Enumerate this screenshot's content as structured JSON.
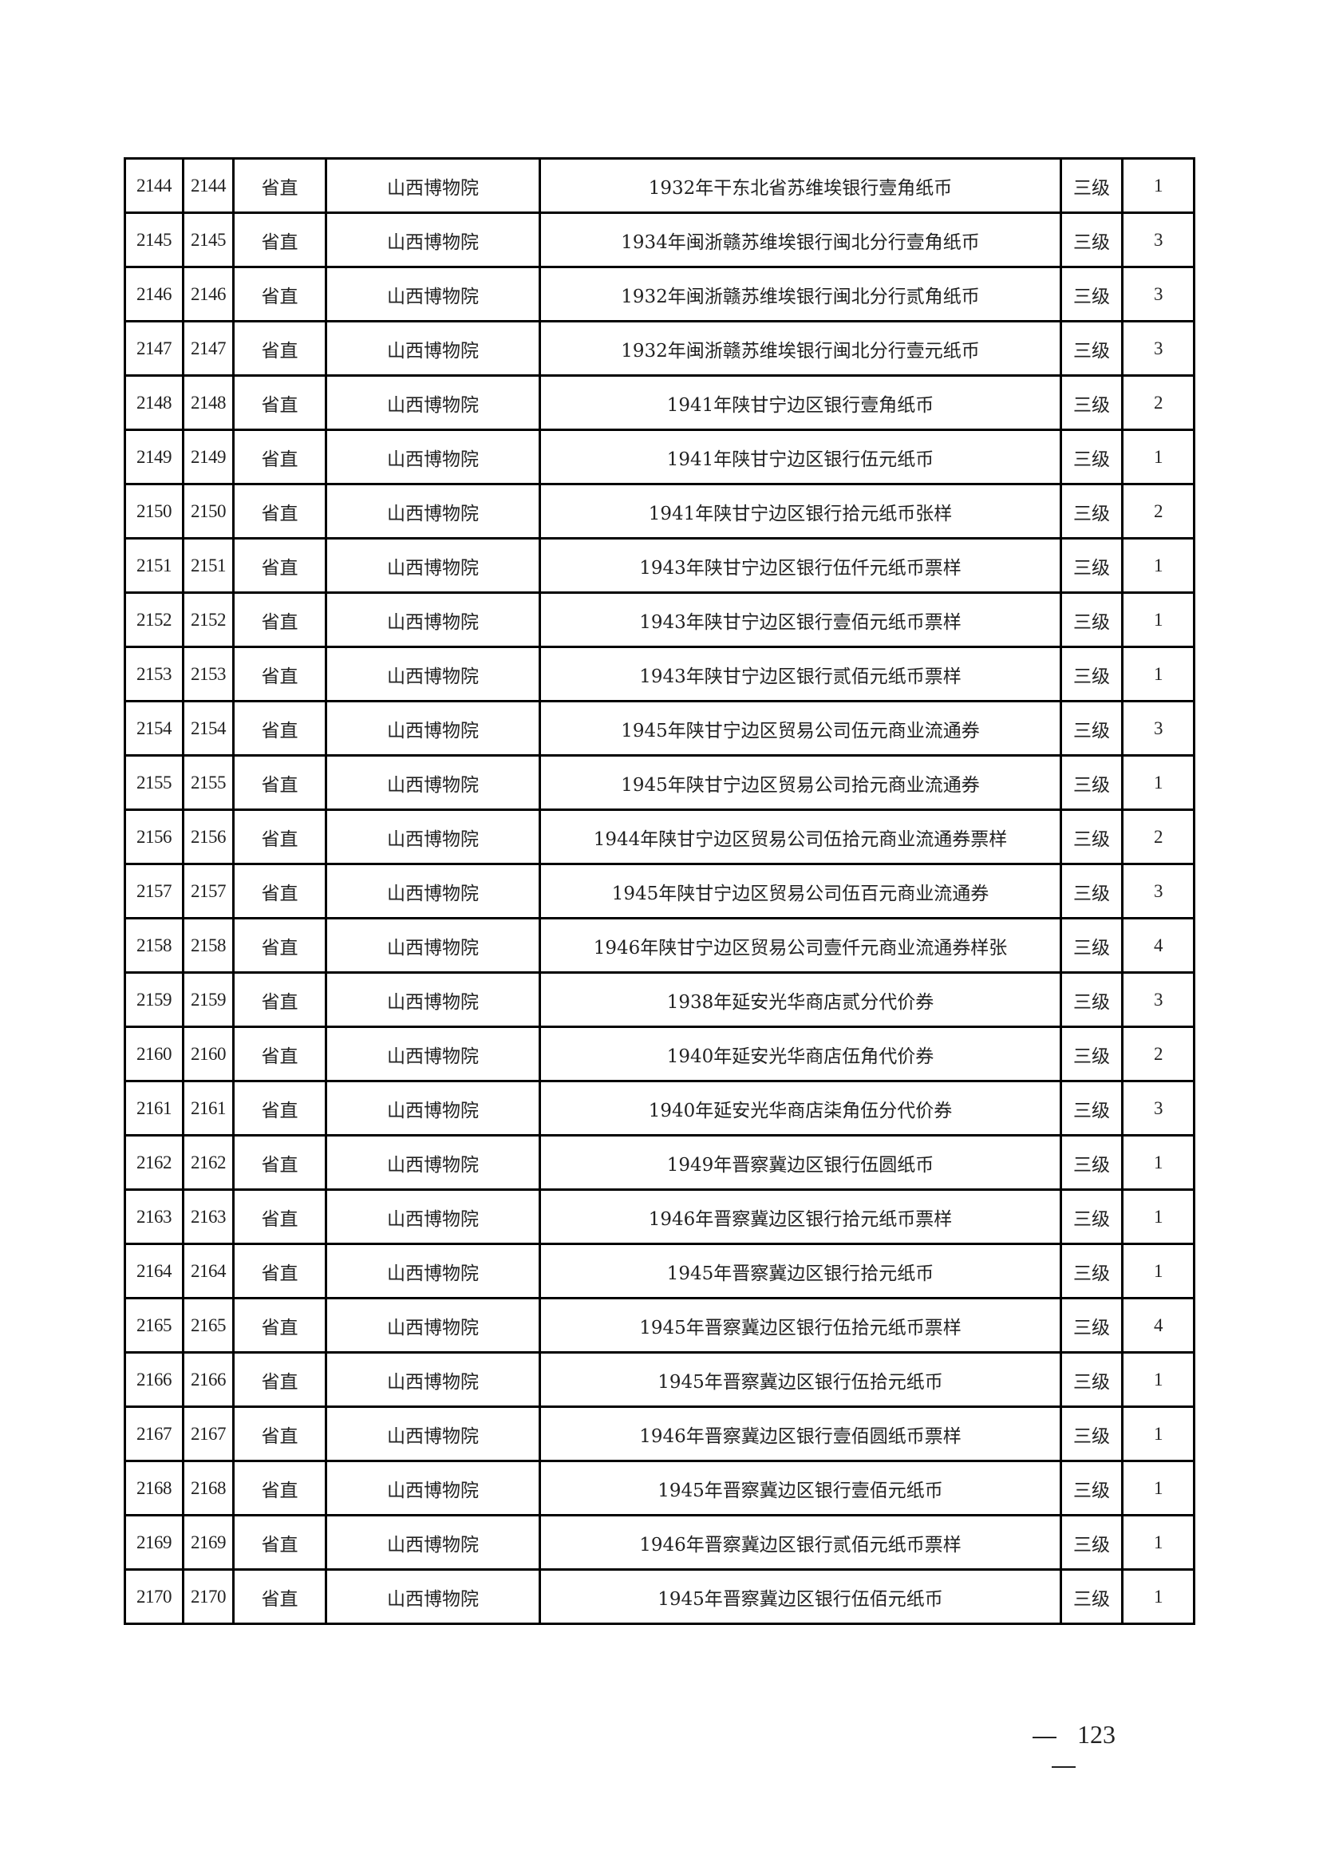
{
  "table": {
    "rows": [
      [
        "2144",
        "2144",
        "省直",
        "山西博物院",
        "1932年干东北省苏维埃银行壹角纸币",
        "三级",
        "1"
      ],
      [
        "2145",
        "2145",
        "省直",
        "山西博物院",
        "1934年闽浙赣苏维埃银行闽北分行壹角纸币",
        "三级",
        "3"
      ],
      [
        "2146",
        "2146",
        "省直",
        "山西博物院",
        "1932年闽浙赣苏维埃银行闽北分行贰角纸币",
        "三级",
        "3"
      ],
      [
        "2147",
        "2147",
        "省直",
        "山西博物院",
        "1932年闽浙赣苏维埃银行闽北分行壹元纸币",
        "三级",
        "3"
      ],
      [
        "2148",
        "2148",
        "省直",
        "山西博物院",
        "1941年陕甘宁边区银行壹角纸币",
        "三级",
        "2"
      ],
      [
        "2149",
        "2149",
        "省直",
        "山西博物院",
        "1941年陕甘宁边区银行伍元纸币",
        "三级",
        "1"
      ],
      [
        "2150",
        "2150",
        "省直",
        "山西博物院",
        "1941年陕甘宁边区银行拾元纸币张样",
        "三级",
        "2"
      ],
      [
        "2151",
        "2151",
        "省直",
        "山西博物院",
        "1943年陕甘宁边区银行伍仟元纸币票样",
        "三级",
        "1"
      ],
      [
        "2152",
        "2152",
        "省直",
        "山西博物院",
        "1943年陕甘宁边区银行壹佰元纸币票样",
        "三级",
        "1"
      ],
      [
        "2153",
        "2153",
        "省直",
        "山西博物院",
        "1943年陕甘宁边区银行贰佰元纸币票样",
        "三级",
        "1"
      ],
      [
        "2154",
        "2154",
        "省直",
        "山西博物院",
        "1945年陕甘宁边区贸易公司伍元商业流通券",
        "三级",
        "3"
      ],
      [
        "2155",
        "2155",
        "省直",
        "山西博物院",
        "1945年陕甘宁边区贸易公司拾元商业流通券",
        "三级",
        "1"
      ],
      [
        "2156",
        "2156",
        "省直",
        "山西博物院",
        "1944年陕甘宁边区贸易公司伍拾元商业流通券票样",
        "三级",
        "2"
      ],
      [
        "2157",
        "2157",
        "省直",
        "山西博物院",
        "1945年陕甘宁边区贸易公司伍百元商业流通券",
        "三级",
        "3"
      ],
      [
        "2158",
        "2158",
        "省直",
        "山西博物院",
        "1946年陕甘宁边区贸易公司壹仟元商业流通券样张",
        "三级",
        "4"
      ],
      [
        "2159",
        "2159",
        "省直",
        "山西博物院",
        "1938年延安光华商店贰分代价券",
        "三级",
        "3"
      ],
      [
        "2160",
        "2160",
        "省直",
        "山西博物院",
        "1940年延安光华商店伍角代价券",
        "三级",
        "2"
      ],
      [
        "2161",
        "2161",
        "省直",
        "山西博物院",
        "1940年延安光华商店柒角伍分代价券",
        "三级",
        "3"
      ],
      [
        "2162",
        "2162",
        "省直",
        "山西博物院",
        "1949年晋察冀边区银行伍圆纸币",
        "三级",
        "1"
      ],
      [
        "2163",
        "2163",
        "省直",
        "山西博物院",
        "1946年晋察冀边区银行拾元纸币票样",
        "三级",
        "1"
      ],
      [
        "2164",
        "2164",
        "省直",
        "山西博物院",
        "1945年晋察冀边区银行拾元纸币",
        "三级",
        "1"
      ],
      [
        "2165",
        "2165",
        "省直",
        "山西博物院",
        "1945年晋察冀边区银行伍拾元纸币票样",
        "三级",
        "4"
      ],
      [
        "2166",
        "2166",
        "省直",
        "山西博物院",
        "1945年晋察冀边区银行伍拾元纸币",
        "三级",
        "1"
      ],
      [
        "2167",
        "2167",
        "省直",
        "山西博物院",
        "1946年晋察冀边区银行壹佰圆纸币票样",
        "三级",
        "1"
      ],
      [
        "2168",
        "2168",
        "省直",
        "山西博物院",
        "1945年晋察冀边区银行壹佰元纸币",
        "三级",
        "1"
      ],
      [
        "2169",
        "2169",
        "省直",
        "山西博物院",
        "1946年晋察冀边区银行贰佰元纸币票样",
        "三级",
        "1"
      ],
      [
        "2170",
        "2170",
        "省直",
        "山西博物院",
        "1945年晋察冀边区银行伍佰元纸币",
        "三级",
        "1"
      ]
    ]
  },
  "footer": {
    "page_number": "123"
  }
}
